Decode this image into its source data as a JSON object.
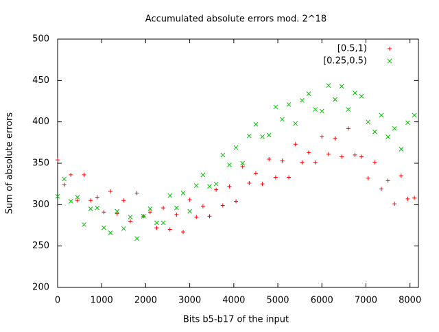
{
  "chart_data": {
    "type": "scatter",
    "title": "Accumulated absolute errors mod. 2^18",
    "x_label": "Bits b5-b17 of the input",
    "y_label": "Sum of absolute errors",
    "xlim": [
      0,
      8192
    ],
    "ylim": [
      200,
      500
    ],
    "xticks": [
      0,
      1000,
      2000,
      3000,
      4000,
      5000,
      6000,
      7000,
      8000
    ],
    "yticks": [
      200,
      250,
      300,
      350,
      400,
      450,
      500
    ],
    "legend": "top-right",
    "x": [
      0,
      150,
      300,
      450,
      600,
      750,
      900,
      1050,
      1200,
      1350,
      1500,
      1650,
      1800,
      1950,
      2100,
      2250,
      2400,
      2550,
      2700,
      2850,
      3000,
      3150,
      3300,
      3450,
      3600,
      3750,
      3900,
      4050,
      4200,
      4350,
      4500,
      4650,
      4800,
      4950,
      5100,
      5250,
      5400,
      5550,
      5700,
      5850,
      6000,
      6150,
      6300,
      6450,
      6600,
      6750,
      6900,
      7050,
      7200,
      7350,
      7500,
      7650,
      7800,
      7950,
      8100
    ],
    "series": [
      {
        "name": "[0.5,1)",
        "color": "#ff0000",
        "marker": "plus",
        "values": [
          354,
          324,
          336,
          305,
          336,
          305,
          309,
          291,
          316,
          289,
          305,
          280,
          314,
          286,
          291,
          272,
          296,
          270,
          288,
          267,
          306,
          285,
          298,
          286,
          318,
          299,
          322,
          304,
          346,
          326,
          338,
          325,
          355,
          333,
          353,
          333,
          373,
          351,
          363,
          351,
          382,
          361,
          380,
          358,
          392,
          360,
          358,
          332,
          351,
          319,
          329,
          301,
          335,
          307,
          308
        ]
      },
      {
        "name": "[0.25,0.5)",
        "color": "#00c000",
        "marker": "cross",
        "values": [
          310,
          331,
          304,
          309,
          276,
          295,
          296,
          272,
          266,
          292,
          271,
          285,
          259,
          286,
          295,
          278,
          278,
          311,
          296,
          314,
          292,
          323,
          336,
          322,
          325,
          360,
          348,
          369,
          350,
          383,
          397,
          382,
          384,
          418,
          403,
          421,
          398,
          426,
          434,
          415,
          413,
          444,
          427,
          443,
          415,
          435,
          431,
          400,
          388,
          408,
          382,
          392,
          367,
          399,
          408
        ]
      }
    ]
  }
}
